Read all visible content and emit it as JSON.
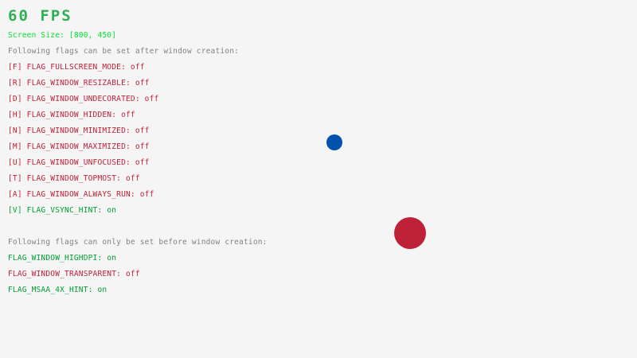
{
  "fps": "60 FPS",
  "screen_size": "Screen Size: [800, 450]",
  "after_heading": "Following flags can be set after window creation:",
  "after_flags": [
    {
      "label": "[F] FLAG_FULLSCREEN_MODE: ",
      "value": "off",
      "on": false
    },
    {
      "label": "[R] FLAG_WINDOW_RESIZABLE: ",
      "value": "off",
      "on": false
    },
    {
      "label": "[D] FLAG_WINDOW_UNDECORATED: ",
      "value": "off",
      "on": false
    },
    {
      "label": "[H] FLAG_WINDOW_HIDDEN: ",
      "value": "off",
      "on": false
    },
    {
      "label": "[N] FLAG_WINDOW_MINIMIZED: ",
      "value": "off",
      "on": false
    },
    {
      "label": "[M] FLAG_WINDOW_MAXIMIZED: ",
      "value": "off",
      "on": false
    },
    {
      "label": "[U] FLAG_WINDOW_UNFOCUSED: ",
      "value": "off",
      "on": false
    },
    {
      "label": "[T] FLAG_WINDOW_TOPMOST: ",
      "value": "off",
      "on": false
    },
    {
      "label": "[A] FLAG_WINDOW_ALWAYS_RUN: ",
      "value": "off",
      "on": false
    },
    {
      "label": "[V] FLAG_VSYNC_HINT: ",
      "value": "on",
      "on": true
    }
  ],
  "before_heading": "Following flags can only be set before window creation:",
  "before_flags": [
    {
      "label": "FLAG_WINDOW_HIGHDPI: ",
      "value": "on",
      "on": true
    },
    {
      "label": "FLAG_WINDOW_TRANSPARENT: ",
      "value": "off",
      "on": false
    },
    {
      "label": "FLAG_MSAA_4X_HINT: ",
      "value": "on",
      "on": true
    }
  ],
  "colors": {
    "background": "#f5f5f5",
    "fps": "#2fb052",
    "screen_size": "#00e430",
    "heading": "#828282",
    "on": "#009e2f",
    "off": "#be2137",
    "blue_ball": "#0052ac",
    "red_ball": "#be2137"
  }
}
